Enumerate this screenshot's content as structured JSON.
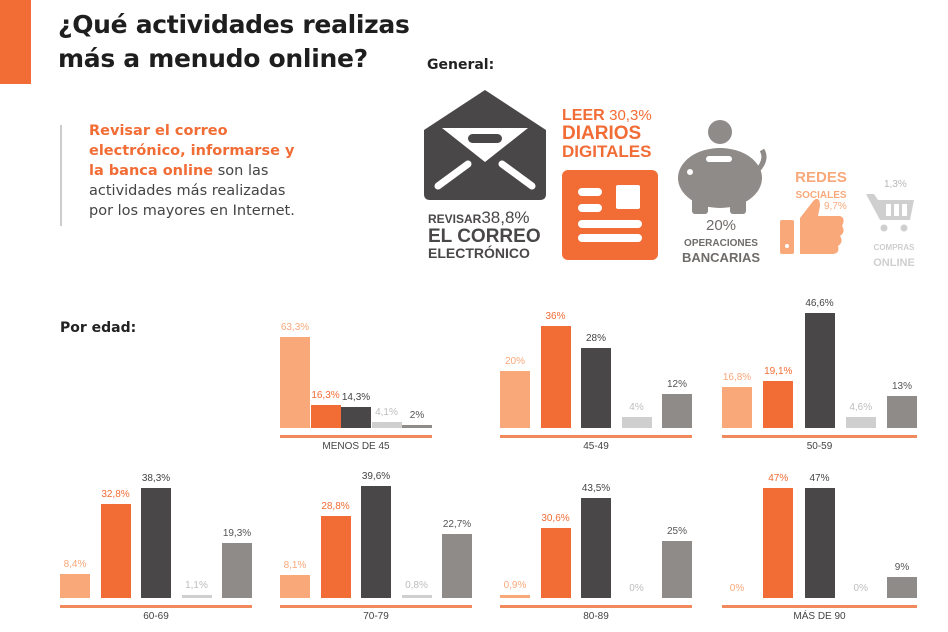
{
  "title_line1": "¿Qué actividades realizas",
  "title_line2": "más a menudo online?",
  "lead": {
    "highlight": "Revisar el correo electrónico, informarse y la banca online",
    "rest": " son las actividades más realizadas por los mayores en Internet."
  },
  "general_label": "General:",
  "por_edad_label": "Por edad:",
  "general": {
    "correo": {
      "pre": "REVISAR",
      "pct": "38,8%",
      "l1": "EL CORREO",
      "l2": "ELECTRÓNICO",
      "icon": "envelope-icon"
    },
    "diarios": {
      "pre": "LEER",
      "pct": "30,3%",
      "l1": "DIARIOS",
      "l2": "DIGITALES",
      "icon": "newspaper-icon"
    },
    "banca": {
      "pct": "20%",
      "l1": "OPERACIONES",
      "l2": "BANCARIAS",
      "icon": "piggy-bank-icon"
    },
    "redes": {
      "l1": "REDES",
      "l2": "SOCIALES",
      "pct": "9,7%",
      "icon": "thumbs-up-icon"
    },
    "compras": {
      "pct": "1,3%",
      "l1": "COMPRAS",
      "l2": "ONLINE",
      "icon": "shopping-cart-icon"
    }
  },
  "colors": {
    "redes": "#f9a87a",
    "diarios": "#f26c35",
    "correo": "#4a4748",
    "compras": "#cfcfcf",
    "banca": "#8f8b89"
  },
  "chart_data": {
    "type": "bar",
    "series_order": [
      "Redes sociales",
      "Leer diarios digitales",
      "Revisar el correo electrónico",
      "Compras online",
      "Operaciones bancarias"
    ],
    "panels": [
      {
        "category": "MENOS DE 45",
        "values": [
          63.3,
          16.3,
          14.3,
          4.1,
          2
        ],
        "labels": [
          "63,3%",
          "16,3%",
          "14,3%",
          "4,1%",
          "2%"
        ]
      },
      {
        "category": "45-49",
        "values": [
          20,
          36,
          28,
          4,
          12
        ],
        "labels": [
          "20%",
          "36%",
          "28%",
          "4%",
          "12%"
        ]
      },
      {
        "category": "50-59",
        "values": [
          16.8,
          19.1,
          46.6,
          4.6,
          13
        ],
        "labels": [
          "16,8%",
          "19,1%",
          "46,6%",
          "4,6%",
          "13%"
        ]
      },
      {
        "category": "60-69",
        "values": [
          8.4,
          32.8,
          38.3,
          1.1,
          19.3
        ],
        "labels": [
          "8,4%",
          "32,8%",
          "38,3%",
          "1,1%",
          "19,3%"
        ]
      },
      {
        "category": "70-79",
        "values": [
          8.1,
          28.8,
          39.6,
          0.8,
          22.7
        ],
        "labels": [
          "8,1%",
          "28,8%",
          "39,6%",
          "0,8%",
          "22,7%"
        ]
      },
      {
        "category": "80-89",
        "values": [
          0.9,
          30.6,
          43.5,
          0,
          25
        ],
        "labels": [
          "0,9%",
          "30,6%",
          "43,5%",
          "0%",
          "25%"
        ]
      },
      {
        "category": "MÁS DE 90",
        "values": [
          0,
          47,
          47,
          0,
          9
        ],
        "labels": [
          "0%",
          "47%",
          "47%",
          "0%",
          "9%"
        ]
      }
    ]
  }
}
